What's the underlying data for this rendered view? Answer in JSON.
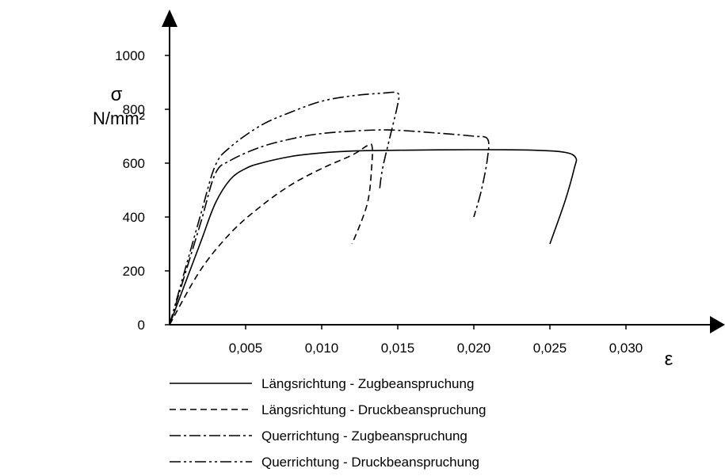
{
  "chart_data": {
    "type": "line",
    "title": "",
    "ylabel_symbol": "σ",
    "ylabel_unit": "N/mm²",
    "xlabel": "ε",
    "xlim": [
      0,
      0.036
    ],
    "ylim": [
      0,
      1000
    ],
    "y_ticks": [
      0,
      200,
      400,
      600,
      800,
      1000
    ],
    "y_tick_labels": [
      "0",
      "200",
      "400",
      "600",
      "800",
      "1000"
    ],
    "x_ticks": [
      0.005,
      0.01,
      0.015,
      0.02,
      0.025,
      0.03
    ],
    "x_tick_labels": [
      "0,005",
      "0,010",
      "0,015",
      "0,020",
      "0,025",
      "0,030"
    ],
    "grid": false,
    "legend_position": "bottom",
    "series": [
      {
        "name": "Längsrichtung - Zugbeanspruchung",
        "style": "solid",
        "points": [
          [
            0,
            0
          ],
          [
            0.002,
            300
          ],
          [
            0.003,
            450
          ],
          [
            0.004,
            540
          ],
          [
            0.005,
            580
          ],
          [
            0.006,
            600
          ],
          [
            0.008,
            625
          ],
          [
            0.01,
            638
          ],
          [
            0.012,
            645
          ],
          [
            0.015,
            648
          ],
          [
            0.02,
            650
          ],
          [
            0.024,
            648
          ],
          [
            0.026,
            640
          ],
          [
            0.0267,
            620
          ],
          [
            0.0266,
            580
          ],
          [
            0.026,
            460
          ],
          [
            0.025,
            300
          ]
        ]
      },
      {
        "name": "Längsrichtung - Druckbeanspruchung",
        "style": "dashed",
        "points": [
          [
            0,
            0
          ],
          [
            0.002,
            200
          ],
          [
            0.004,
            340
          ],
          [
            0.006,
            440
          ],
          [
            0.008,
            520
          ],
          [
            0.01,
            580
          ],
          [
            0.012,
            630
          ],
          [
            0.013,
            665
          ],
          [
            0.0133,
            665
          ],
          [
            0.0133,
            600
          ],
          [
            0.013,
            450
          ],
          [
            0.012,
            300
          ]
        ]
      },
      {
        "name": "Querrichtung - Zugbeanspruchung",
        "style": "dashdot",
        "points": [
          [
            0,
            0
          ],
          [
            0.002,
            370
          ],
          [
            0.003,
            560
          ],
          [
            0.004,
            610
          ],
          [
            0.006,
            660
          ],
          [
            0.008,
            690
          ],
          [
            0.01,
            710
          ],
          [
            0.013,
            722
          ],
          [
            0.015,
            722
          ],
          [
            0.018,
            710
          ],
          [
            0.02,
            700
          ],
          [
            0.0209,
            690
          ],
          [
            0.0209,
            620
          ],
          [
            0.0205,
            500
          ],
          [
            0.02,
            400
          ]
        ]
      },
      {
        "name": "Querrichtung - Druckbeanspruchung",
        "style": "dashdotdot",
        "points": [
          [
            0,
            0
          ],
          [
            0.002,
            400
          ],
          [
            0.003,
            590
          ],
          [
            0.004,
            660
          ],
          [
            0.006,
            740
          ],
          [
            0.008,
            790
          ],
          [
            0.01,
            830
          ],
          [
            0.012,
            850
          ],
          [
            0.014,
            860
          ],
          [
            0.015,
            860
          ],
          [
            0.015,
            820
          ],
          [
            0.0145,
            700
          ],
          [
            0.014,
            580
          ],
          [
            0.0138,
            500
          ]
        ]
      }
    ]
  }
}
